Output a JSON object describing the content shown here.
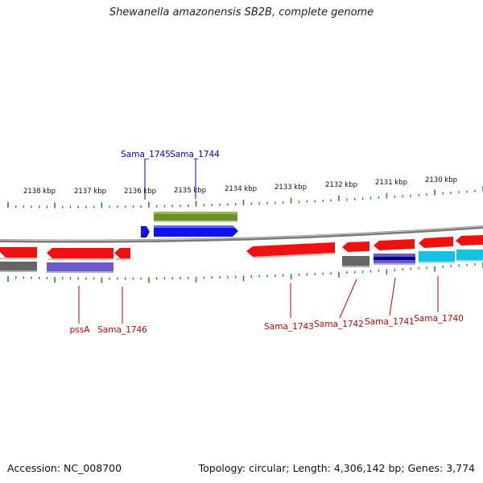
{
  "title": "Shewanella amazonensis SB2B, complete genome",
  "footer": {
    "accession": "Accession: NC_008700",
    "summary": "Topology: circular; Length: 4,306,142 bp; Genes: 3,774"
  },
  "colors": {
    "backbone": "#7a7a7a",
    "tick": "#2a8a2a",
    "label_top": "#0000cc",
    "label_bottom": "#cc0000",
    "red": "#ee1111",
    "blue": "#1111ee",
    "olive": "#6f8f2a",
    "gray": "#666666",
    "purple": "#6a5acd",
    "cyan": "#17bfe0",
    "navy": "#000080"
  },
  "kbp_labels": [
    "2138 kbp",
    "2137 kbp",
    "2136 kbp",
    "2135 kbp",
    "2134 kbp",
    "2133 kbp",
    "2132 kbp",
    "2131 kbp",
    "2130 kbp"
  ],
  "gene_labels_top": [
    "Sama_1745",
    "Sama_1744"
  ],
  "gene_labels_bottom": [
    "pssA",
    "Sama_1746",
    "Sama_1743",
    "Sama_1742",
    "Sama_1741",
    "Sama_1740"
  ]
}
